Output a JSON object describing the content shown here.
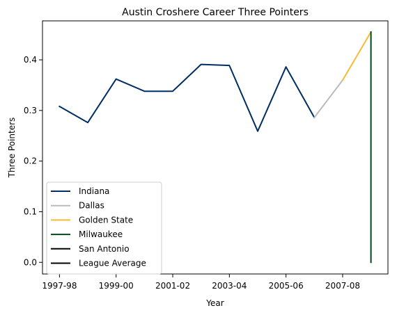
{
  "chart_data": {
    "type": "line",
    "title": "Austin Croshere Career Three Pointers",
    "xlabel": "Year",
    "ylabel": "Three Pointers",
    "x_ticks": [
      "1997-98",
      "1999-00",
      "2001-02",
      "2003-04",
      "2005-06",
      "2007-08"
    ],
    "y_ticks": [
      "0.0",
      "0.1",
      "0.2",
      "0.3",
      "0.4"
    ],
    "xlim": [
      -0.6,
      11.6
    ],
    "ylim": [
      -0.023,
      0.477
    ],
    "grid": false,
    "legend_position": "lower-left",
    "series": [
      {
        "name": "Indiana",
        "color": "#002D62",
        "points": [
          [
            0,
            0.308
          ],
          [
            1,
            0.276
          ],
          [
            2,
            0.362
          ],
          [
            3,
            0.338
          ],
          [
            4,
            0.338
          ],
          [
            5,
            0.391
          ],
          [
            6,
            0.389
          ],
          [
            7,
            0.259
          ],
          [
            8,
            0.386
          ],
          [
            9,
            0.286
          ]
        ]
      },
      {
        "name": "Dallas",
        "color": "#BBBBBB",
        "points": [
          [
            9,
            0.286
          ],
          [
            10,
            0.36
          ]
        ]
      },
      {
        "name": "Golden State",
        "color": "#F5BC32",
        "points": [
          [
            10,
            0.36
          ],
          [
            11,
            0.455
          ]
        ]
      },
      {
        "name": "Milwaukee",
        "color": "#00471B",
        "points": [
          [
            11,
            0.455
          ],
          [
            11,
            0.0
          ]
        ]
      },
      {
        "name": "San Antonio",
        "color": "#000000",
        "points": []
      },
      {
        "name": "League Average",
        "color": "#000000",
        "points": []
      }
    ]
  }
}
